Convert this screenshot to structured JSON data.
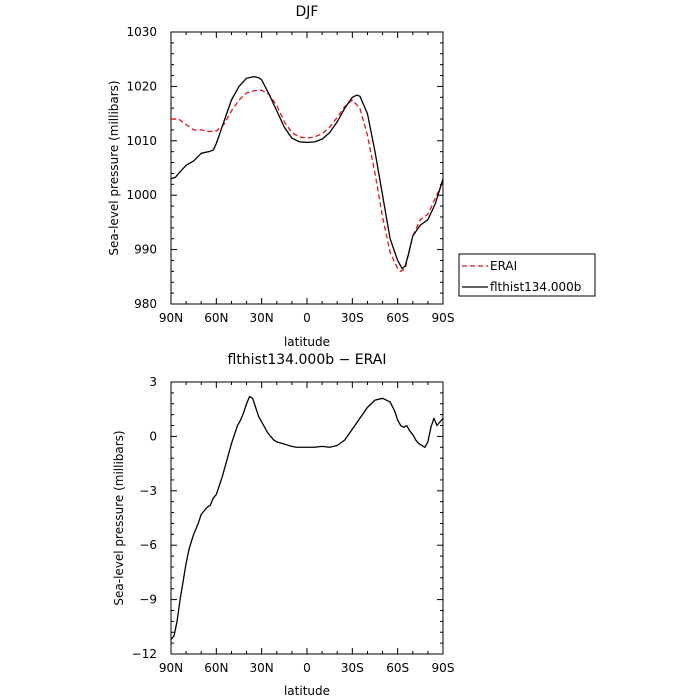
{
  "chart_data": [
    {
      "type": "line",
      "title": "DJF",
      "xlabel": "latitude",
      "ylabel": "Sea-level pressure (millibars)",
      "xlim": [
        90,
        -90
      ],
      "ylim": [
        980,
        1030
      ],
      "x_ticks": [
        90,
        60,
        30,
        0,
        -30,
        -60,
        -90
      ],
      "x_tick_labels": [
        "90N",
        "60N",
        "30N",
        "0",
        "30S",
        "60S",
        "90S"
      ],
      "y_ticks": [
        980,
        990,
        1000,
        1010,
        1020,
        1030
      ],
      "y_tick_labels": [
        "980",
        "990",
        "1000",
        "1010",
        "1020",
        "1030"
      ],
      "grid": false,
      "legend": "outside-right",
      "series": [
        {
          "name": "ERAI",
          "color": "#e8141b",
          "dash": "dashed",
          "x": [
            90,
            85,
            80,
            75,
            70,
            65,
            60,
            55,
            50,
            45,
            40,
            35,
            30,
            25,
            20,
            15,
            10,
            5,
            0,
            -5,
            -10,
            -15,
            -20,
            -25,
            -30,
            -35,
            -40,
            -45,
            -50,
            -55,
            -60,
            -62,
            -65,
            -67,
            -70,
            -75,
            -80,
            -85,
            -90
          ],
          "y": [
            1014,
            1014,
            1013,
            1012,
            1012,
            1011.7,
            1011.8,
            1013,
            1015.5,
            1017.5,
            1018.8,
            1019.2,
            1019.3,
            1018.5,
            1016.5,
            1013.5,
            1011.5,
            1010.7,
            1010.5,
            1010.7,
            1011.3,
            1012.5,
            1014.3,
            1016.3,
            1017.5,
            1016,
            1011,
            1004,
            996,
            989.5,
            986.5,
            986,
            986.5,
            989,
            992.5,
            995.5,
            996.5,
            999.5,
            1002.5
          ]
        },
        {
          "name": "flthist134.000b",
          "color": "#000000",
          "dash": "solid",
          "x": [
            90,
            87,
            85,
            80,
            75,
            70,
            67,
            65,
            62,
            60,
            55,
            50,
            45,
            40,
            35,
            32,
            30,
            25,
            20,
            15,
            10,
            5,
            0,
            -5,
            -10,
            -15,
            -20,
            -25,
            -30,
            -33,
            -35,
            -40,
            -45,
            -50,
            -55,
            -60,
            -63,
            -65,
            -67,
            -70,
            -75,
            -80,
            -85,
            -90
          ],
          "y": [
            1003,
            1003.3,
            1004,
            1005.5,
            1006.3,
            1007.7,
            1007.9,
            1008,
            1008.3,
            1009.5,
            1013.5,
            1017.5,
            1020,
            1021.5,
            1021.8,
            1021.6,
            1021.2,
            1018.5,
            1015.5,
            1012.5,
            1010.5,
            1009.8,
            1009.7,
            1009.8,
            1010.3,
            1011.5,
            1013.5,
            1016,
            1018,
            1018.4,
            1018.2,
            1015,
            1008,
            1000,
            992,
            988,
            986.5,
            987,
            989,
            992.5,
            994.5,
            995.5,
            998.5,
            1003
          ]
        }
      ]
    },
    {
      "type": "line",
      "title": "flthist134.000b − ERAI",
      "xlabel": "latitude",
      "ylabel": "Sea-level pressure (millibars)",
      "xlim": [
        90,
        -90
      ],
      "ylim": [
        -12,
        3
      ],
      "x_ticks": [
        90,
        60,
        30,
        0,
        -30,
        -60,
        -90
      ],
      "x_tick_labels": [
        "90N",
        "60N",
        "30N",
        "0",
        "30S",
        "60S",
        "90S"
      ],
      "y_ticks": [
        -12,
        -9,
        -6,
        -3,
        0,
        3
      ],
      "y_tick_labels": [
        "−12",
        "−9",
        "−6",
        "−3",
        "0",
        "3"
      ],
      "grid": false,
      "series": [
        {
          "color": "#000000",
          "dash": "solid",
          "x": [
            90,
            88,
            86,
            84,
            82,
            80,
            78,
            75,
            72,
            70,
            68,
            66,
            64,
            62,
            60,
            58,
            56,
            54,
            52,
            50,
            48,
            46,
            44,
            42,
            40,
            38,
            36,
            34,
            32,
            30,
            28,
            26,
            24,
            22,
            20,
            18,
            16,
            14,
            12,
            10,
            7,
            4,
            0,
            -5,
            -10,
            -15,
            -20,
            -25,
            -30,
            -35,
            -40,
            -45,
            -50,
            -55,
            -58,
            -60,
            -62,
            -64,
            -66,
            -68,
            -70,
            -72,
            -74,
            -76,
            -78,
            -80,
            -82,
            -84,
            -86,
            -88,
            -90
          ],
          "y": [
            -11.2,
            -11,
            -10.2,
            -9,
            -8,
            -7,
            -6.2,
            -5.4,
            -4.8,
            -4.3,
            -4.1,
            -3.9,
            -3.8,
            -3.4,
            -3.2,
            -2.7,
            -2.2,
            -1.6,
            -1.0,
            -0.4,
            0.1,
            0.6,
            0.9,
            1.3,
            1.8,
            2.2,
            2.1,
            1.6,
            1.1,
            0.8,
            0.5,
            0.2,
            0.0,
            -0.2,
            -0.3,
            -0.35,
            -0.4,
            -0.45,
            -0.5,
            -0.55,
            -0.6,
            -0.6,
            -0.6,
            -0.6,
            -0.55,
            -0.6,
            -0.5,
            -0.2,
            0.4,
            1.0,
            1.6,
            2.0,
            2.1,
            1.9,
            1.4,
            0.9,
            0.6,
            0.5,
            0.6,
            0.3,
            0.1,
            -0.2,
            -0.4,
            -0.5,
            -0.6,
            -0.3,
            0.5,
            1.0,
            0.6,
            0.8,
            1.0
          ]
        }
      ]
    }
  ]
}
